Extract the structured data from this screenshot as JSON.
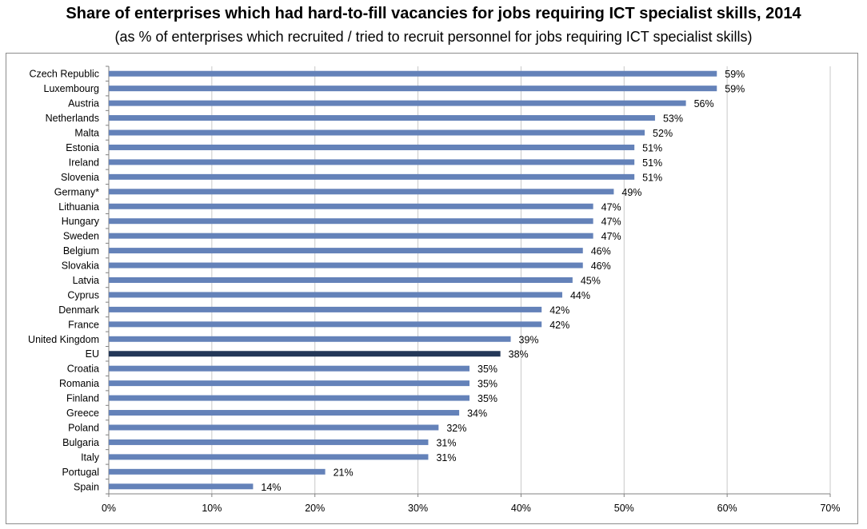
{
  "chart_data": {
    "type": "bar",
    "orientation": "horizontal",
    "title": "Share of enterprises which had hard-to-fill vacancies for jobs requiring ICT specialist skills, 2014",
    "subtitle": "(as % of enterprises which recruited / tried to recruit personnel for jobs requiring ICT specialist skills)",
    "categories": [
      "Czech Republic",
      "Luxembourg",
      "Austria",
      "Netherlands",
      "Malta",
      "Estonia",
      "Ireland",
      "Slovenia",
      "Germany*",
      "Lithuania",
      "Hungary",
      "Sweden",
      "Belgium",
      "Slovakia",
      "Latvia",
      "Cyprus",
      "Denmark",
      "France",
      "United Kingdom",
      "EU",
      "Croatia",
      "Romania",
      "Finland",
      "Greece",
      "Poland",
      "Bulgaria",
      "Italy",
      "Portugal",
      "Spain"
    ],
    "values": [
      59,
      59,
      56,
      53,
      52,
      51,
      51,
      51,
      49,
      47,
      47,
      47,
      46,
      46,
      45,
      44,
      42,
      42,
      39,
      38,
      35,
      35,
      35,
      34,
      32,
      31,
      31,
      21,
      14
    ],
    "value_labels": [
      "59%",
      "59%",
      "56%",
      "53%",
      "52%",
      "51%",
      "51%",
      "51%",
      "49%",
      "47%",
      "47%",
      "47%",
      "46%",
      "46%",
      "45%",
      "44%",
      "42%",
      "42%",
      "39%",
      "38%",
      "35%",
      "35%",
      "35%",
      "34%",
      "32%",
      "31%",
      "31%",
      "21%",
      "14%"
    ],
    "highlight_category": "EU",
    "xlim": [
      0,
      70
    ],
    "x_ticks": [
      0,
      10,
      20,
      30,
      40,
      50,
      60,
      70
    ],
    "x_tick_labels": [
      "0%",
      "10%",
      "20%",
      "30%",
      "40%",
      "50%",
      "60%",
      "70%"
    ],
    "grid": "vertical",
    "legend": "none",
    "colors": {
      "bar": "#6482b9",
      "highlight": "#243858",
      "grid": "#c8c8c8"
    }
  }
}
